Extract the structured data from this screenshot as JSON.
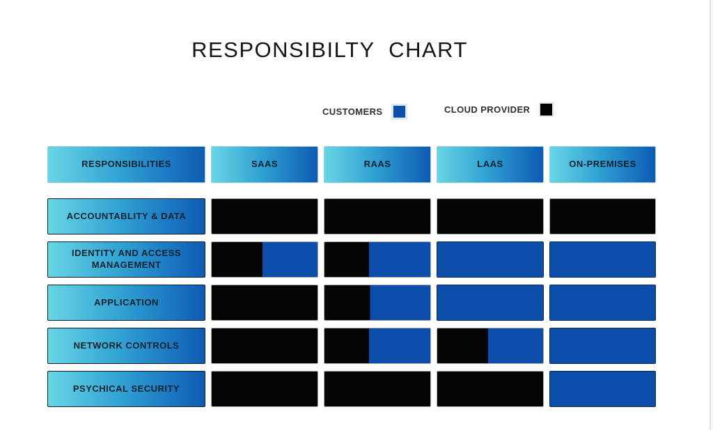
{
  "page": {
    "title": "RESPONSIBILTY CHART"
  },
  "legend": {
    "customers_label": "CUSTOMERS",
    "provider_label": "CLOUD PROVIDER",
    "customer_color": "#0b4da8",
    "provider_color": "#020202"
  },
  "colors": {
    "header_gradient_start": "#67d6e5",
    "header_gradient_end": "#0e5bb3",
    "customer_blue": "#0b4da8",
    "provider_black": "#050505"
  },
  "chart_data": {
    "type": "table",
    "title": "RESPONSIBILTY CHART",
    "row_header": "RESPONSIBILITIES",
    "columns": [
      "SAAS",
      "RAAS",
      "LAAS",
      "ON-PREMISES"
    ],
    "legend": {
      "customer": "CUSTOMERS",
      "provider": "CLOUD PROVIDER"
    },
    "rows": [
      {
        "label": "ACCOUNTABLITY & DATA",
        "cells": [
          {
            "provider_pct": 100
          },
          {
            "provider_pct": 100
          },
          {
            "provider_pct": 100
          },
          {
            "provider_pct": 100
          }
        ]
      },
      {
        "label": "IDENTITY AND ACCESS MANAGEMENT",
        "cells": [
          {
            "provider_pct": 48
          },
          {
            "provider_pct": 42
          },
          {
            "provider_pct": 0
          },
          {
            "provider_pct": 0
          }
        ]
      },
      {
        "label": "APPLICATION",
        "cells": [
          {
            "provider_pct": 100
          },
          {
            "provider_pct": 43
          },
          {
            "provider_pct": 0
          },
          {
            "provider_pct": 0
          }
        ]
      },
      {
        "label": "NETWORK CONTROLS",
        "cells": [
          {
            "provider_pct": 100
          },
          {
            "provider_pct": 42
          },
          {
            "provider_pct": 48
          },
          {
            "provider_pct": 0
          }
        ]
      },
      {
        "label": "PSYCHICAL SECURITY",
        "cells": [
          {
            "provider_pct": 100
          },
          {
            "provider_pct": 100
          },
          {
            "provider_pct": 100
          },
          {
            "provider_pct": 0
          }
        ]
      }
    ]
  }
}
